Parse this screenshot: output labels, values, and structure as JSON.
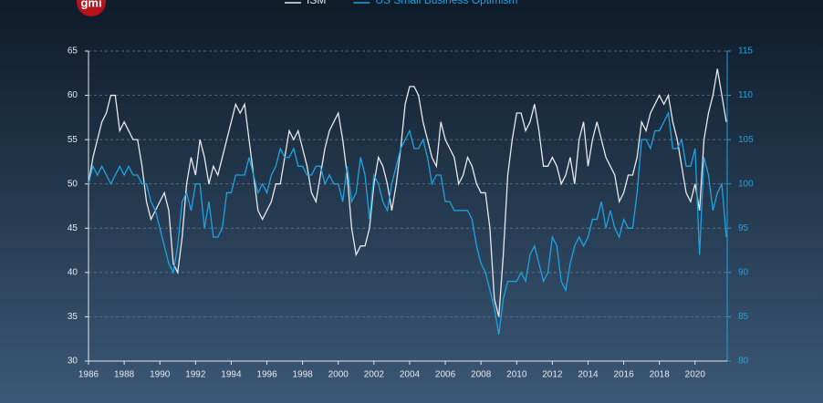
{
  "logo": "gmi",
  "chart_data": {
    "type": "line",
    "x": [
      1986,
      1986.25,
      1986.5,
      1986.75,
      1987,
      1987.25,
      1987.5,
      1987.75,
      1988,
      1988.25,
      1988.5,
      1988.75,
      1989,
      1989.25,
      1989.5,
      1989.75,
      1990,
      1990.25,
      1990.5,
      1990.75,
      1991,
      1991.25,
      1991.5,
      1991.75,
      1992,
      1992.25,
      1992.5,
      1992.75,
      1993,
      1993.25,
      1993.5,
      1993.75,
      1994,
      1994.25,
      1994.5,
      1994.75,
      1995,
      1995.25,
      1995.5,
      1995.75,
      1996,
      1996.25,
      1996.5,
      1996.75,
      1997,
      1997.25,
      1997.5,
      1997.75,
      1998,
      1998.25,
      1998.5,
      1998.75,
      1999,
      1999.25,
      1999.5,
      1999.75,
      2000,
      2000.25,
      2000.5,
      2000.75,
      2001,
      2001.25,
      2001.5,
      2001.75,
      2002,
      2002.25,
      2002.5,
      2002.75,
      2003,
      2003.25,
      2003.5,
      2003.75,
      2004,
      2004.25,
      2004.5,
      2004.75,
      2005,
      2005.25,
      2005.5,
      2005.75,
      2006,
      2006.25,
      2006.5,
      2006.75,
      2007,
      2007.25,
      2007.5,
      2007.75,
      2008,
      2008.25,
      2008.5,
      2008.75,
      2009,
      2009.25,
      2009.5,
      2009.75,
      2010,
      2010.25,
      2010.5,
      2010.75,
      2011,
      2011.25,
      2011.5,
      2011.75,
      2012,
      2012.25,
      2012.5,
      2012.75,
      2013,
      2013.25,
      2013.5,
      2013.75,
      2014,
      2014.25,
      2014.5,
      2014.75,
      2015,
      2015.25,
      2015.5,
      2015.75,
      2016,
      2016.25,
      2016.5,
      2016.75,
      2017,
      2017.25,
      2017.5,
      2017.75,
      2018,
      2018.25,
      2018.5,
      2018.75,
      2019,
      2019.25,
      2019.5,
      2019.75,
      2020,
      2020.25,
      2020.5,
      2020.75,
      2021,
      2021.25,
      2021.5,
      2021.75
    ],
    "series": [
      {
        "name": "ISM",
        "color": "#e6e9ee",
        "axis": "y",
        "values": [
          50,
          53,
          55,
          57,
          58,
          60,
          60,
          56,
          57,
          56,
          55,
          55,
          52,
          48,
          46,
          47,
          48,
          49,
          47,
          41,
          40,
          44,
          50,
          53,
          51,
          55,
          53,
          50,
          52,
          51,
          53,
          55,
          57,
          59,
          58,
          59,
          55,
          51,
          47,
          46,
          47,
          48,
          50,
          50,
          53,
          56,
          55,
          56,
          54,
          52,
          49,
          48,
          51,
          54,
          56,
          57,
          58,
          55,
          51,
          45,
          42,
          43,
          43,
          45,
          50,
          53,
          52,
          50,
          47,
          50,
          54,
          59,
          61,
          61,
          60,
          57,
          55,
          53,
          52,
          57,
          55,
          54,
          53,
          50,
          51,
          53,
          52,
          50,
          49,
          49,
          45,
          37,
          35,
          42,
          51,
          55,
          58,
          58,
          56,
          57,
          59,
          56,
          52,
          52,
          53,
          52,
          50,
          51,
          53,
          50,
          55,
          57,
          52,
          55,
          57,
          55,
          53,
          52,
          51,
          48,
          49,
          51,
          51,
          53,
          57,
          56,
          58,
          59,
          60,
          59,
          60,
          57,
          55,
          52,
          49,
          48,
          50,
          47,
          55,
          58,
          60,
          63,
          60,
          57
        ]
      },
      {
        "name": "US Small Business Optimism",
        "color": "#1ea3e2",
        "axis": "y2",
        "values": [
          100,
          102,
          101,
          102,
          101,
          100,
          101,
          102,
          101,
          102,
          101,
          101,
          100,
          100,
          98,
          97,
          95,
          93,
          91,
          90,
          93,
          98,
          99,
          97,
          100,
          100,
          95,
          98,
          94,
          94,
          95,
          99,
          99,
          101,
          101,
          101,
          103,
          101,
          99,
          100,
          99,
          101,
          102,
          104,
          103,
          103,
          104,
          102,
          102,
          101,
          101,
          102,
          102,
          100,
          101,
          100,
          100,
          98,
          102,
          98,
          99,
          103,
          101,
          96,
          101,
          100,
          98,
          97,
          100,
          102,
          104,
          105,
          106,
          104,
          104,
          105,
          103,
          100,
          101,
          101,
          98,
          98,
          97,
          97,
          97,
          97,
          96,
          93,
          91,
          90,
          88,
          86,
          83,
          87,
          89,
          89,
          89,
          90,
          89,
          92,
          93,
          91,
          89,
          90,
          94,
          93,
          89,
          88,
          91,
          93,
          94,
          93,
          94,
          96,
          96,
          98,
          95,
          97,
          95,
          94,
          96,
          95,
          95,
          99,
          105,
          105,
          104,
          106,
          106,
          107,
          108,
          104,
          104,
          105,
          102,
          102,
          104,
          92,
          103,
          101,
          97,
          99,
          100,
          94
        ]
      }
    ],
    "xlim": [
      1986,
      2021.8
    ],
    "xticks": [
      1986,
      1988,
      1990,
      1992,
      1994,
      1996,
      1998,
      2000,
      2002,
      2004,
      2006,
      2008,
      2010,
      2012,
      2014,
      2016,
      2018,
      2020
    ],
    "ylim": [
      30,
      65
    ],
    "yticks": [
      30,
      35,
      40,
      45,
      50,
      55,
      60,
      65
    ],
    "y2lim": [
      80,
      115
    ],
    "y2ticks": [
      80,
      85,
      90,
      95,
      100,
      105,
      110,
      115
    ],
    "grid": true
  }
}
